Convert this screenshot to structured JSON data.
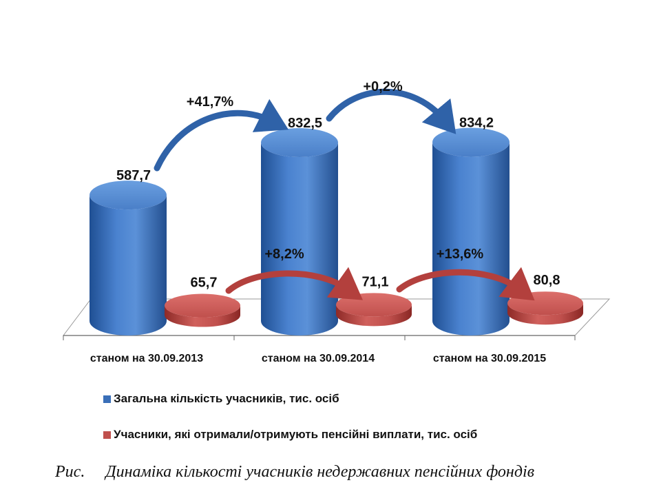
{
  "chart_data": {
    "type": "bar",
    "categories": [
      "станом на 30.09.2013",
      "станом на 30.09.2014",
      "станом на 30.09.2015"
    ],
    "series": [
      {
        "name": "Загальна кількість учасників, тис. осіб",
        "values": [
          587.7,
          832.5,
          834.2
        ],
        "labels": [
          "587,7",
          "832,5",
          "834,2"
        ],
        "color": "#3a6fb8"
      },
      {
        "name": "Учасники, які отримали/отримують пенсійні виплати, тис. осіб",
        "values": [
          65.7,
          71.1,
          80.8
        ],
        "labels": [
          "65,7",
          "71,1",
          "80,8"
        ],
        "color": "#c0504d"
      }
    ],
    "annotations": {
      "total_growth": [
        "+41,7%",
        "+0,2%"
      ],
      "paid_growth": [
        "+8,2%",
        "+13,6%"
      ]
    },
    "ylim": [
      0,
      900
    ],
    "grid": false,
    "legend_position": "bottom"
  },
  "caption": {
    "prefix": "Рис.",
    "text": "Динаміка кількості учасників недержавних пенсійних фондів"
  }
}
